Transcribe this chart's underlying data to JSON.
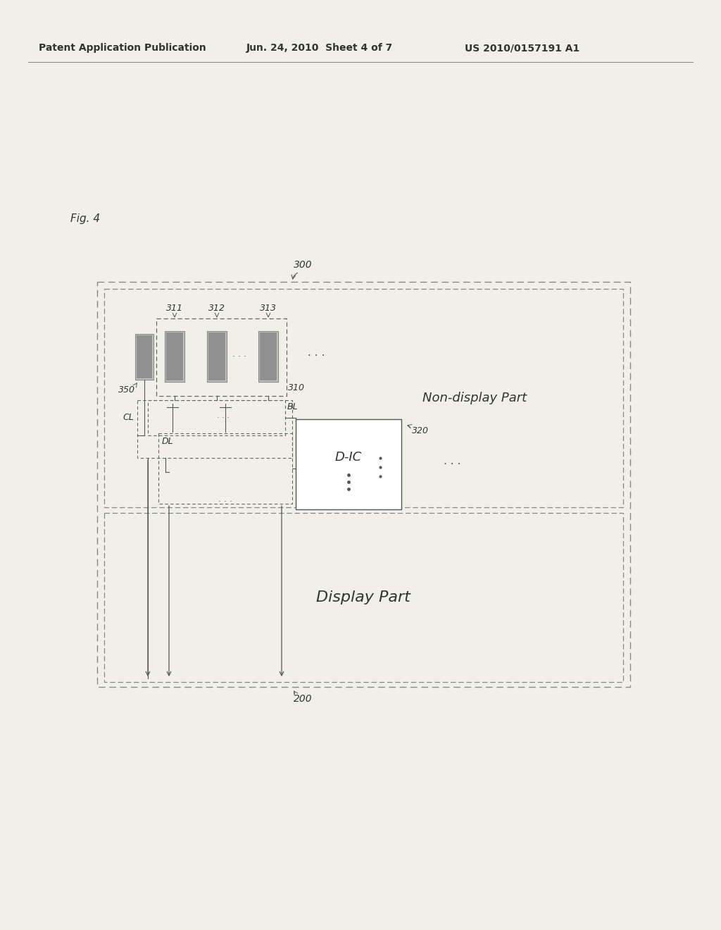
{
  "bg_color": "#f0efe8",
  "header_left": "Patent Application Publication",
  "header_mid": "Jun. 24, 2010  Sheet 4 of 7",
  "header_right": "US 2010/0157191 A1",
  "fig_label": "Fig. 4",
  "label_300": "300",
  "label_310": "310",
  "label_311": "311",
  "label_312": "312",
  "label_313": "313",
  "label_350": "350",
  "label_BL": "BL",
  "label_CL": "CL",
  "label_DL": "DL",
  "label_320": "320",
  "label_DIC": "D-IC",
  "label_non_display": "Non-display Part",
  "label_display": "Display Part",
  "label_200": "200",
  "gray_fill": "#a8a8a8",
  "line_color": "#555555",
  "dash_color": "#777777",
  "text_color": "#333333"
}
